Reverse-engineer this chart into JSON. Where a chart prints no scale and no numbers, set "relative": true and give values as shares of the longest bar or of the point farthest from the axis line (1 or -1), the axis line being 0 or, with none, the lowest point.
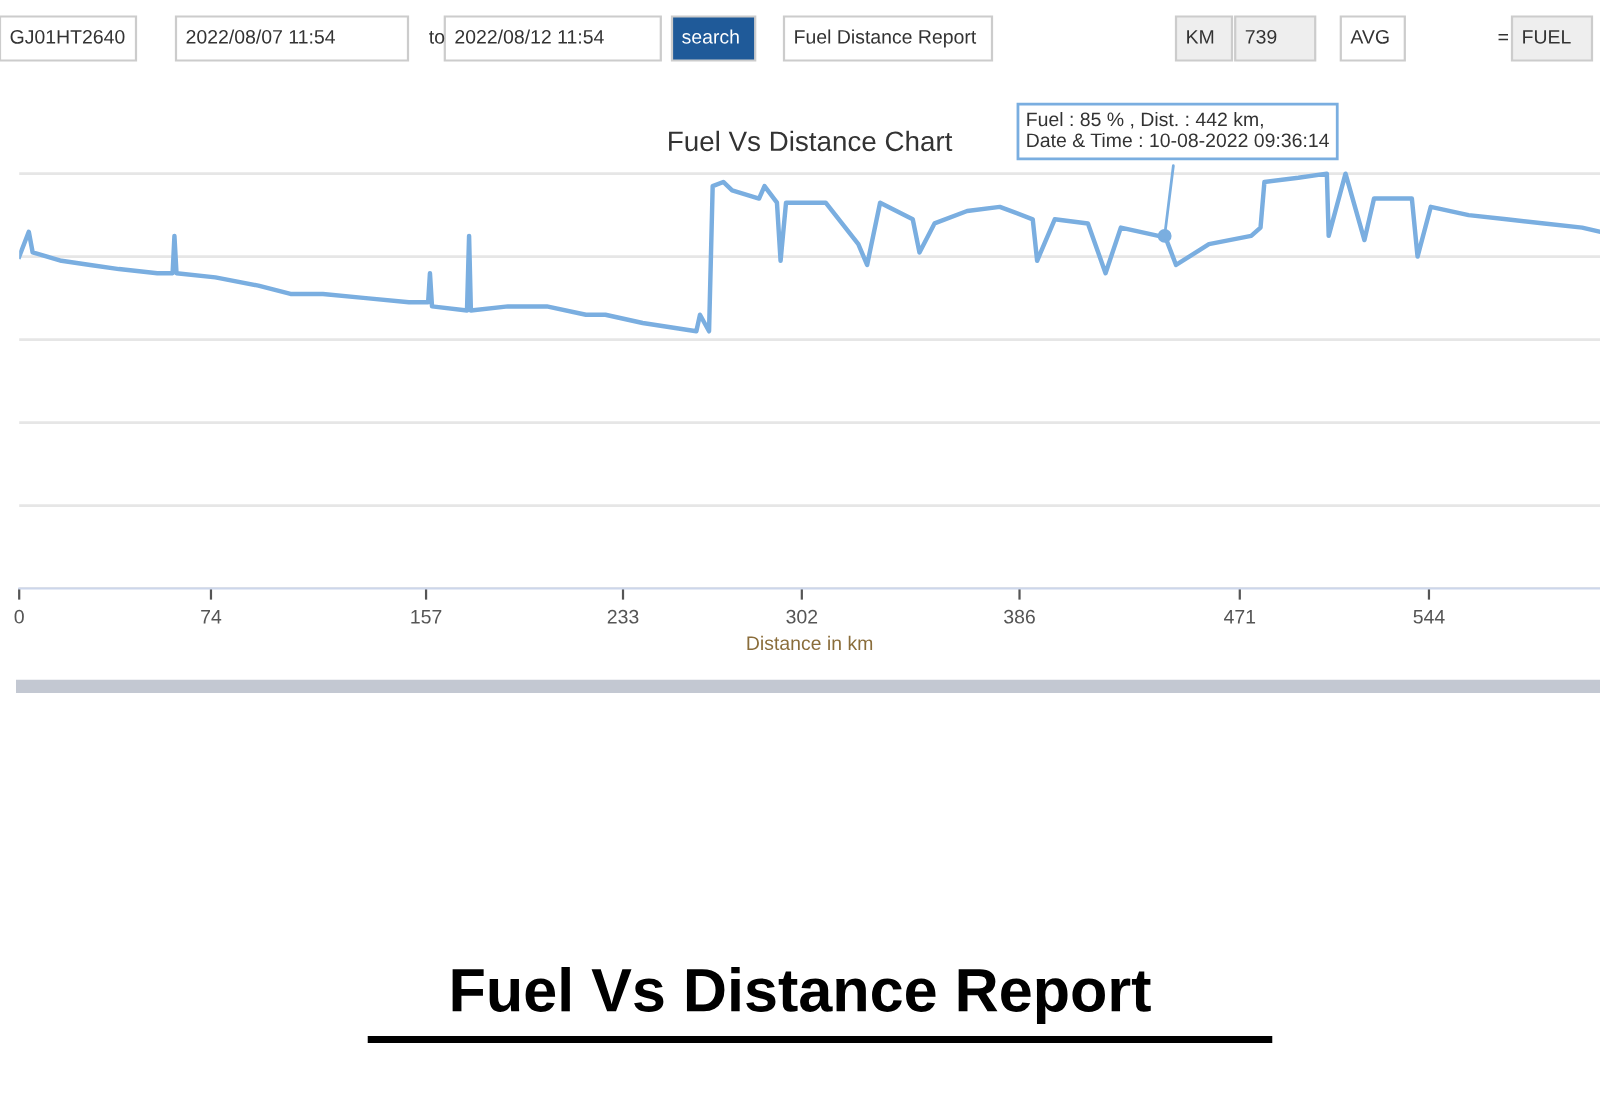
{
  "chart_data": {
    "type": "line",
    "title": "Fuel Vs Distance Chart",
    "xlabel": "Distance in km",
    "relative": true,
    "color": "#7aaee0",
    "grid": "y",
    "legend": false,
    "marker": "none",
    "line_style": "solid",
    "xlim": [
      0,
      610
    ],
    "xticks": [
      0,
      74,
      157,
      233,
      302,
      386,
      471,
      544
    ],
    "x": [
      0,
      3.7,
      5.2,
      16.3,
      27.4,
      38.5,
      53.3,
      59.2,
      59.9,
      60.7,
      75.7,
      92.3,
      104.7,
      117.2,
      133.8,
      150.4,
      157.8,
      158.5,
      159.3,
      172.8,
      173.6,
      174.3,
      188.6,
      203.6,
      218.7,
      226.2,
      240.6,
      261.3,
      262.7,
      266.2,
      267.6,
      271.7,
      275.1,
      285.5,
      287.6,
      292.4,
      293.8,
      295.9,
      311.2,
      323.8,
      327.2,
      332.2,
      344.8,
      347.4,
      353.2,
      365.8,
      378.4,
      391.1,
      392.8,
      399.6,
      412.4,
      419.2,
      425.1,
      439.6,
      442.1,
      446.4,
      459.1,
      475.4,
      479.0,
      480.5,
      493.6,
      504.6,
      505.3,
      511.8,
      519.1,
      522.8,
      537.4,
      539.6,
      544.7,
      559.3,
      573.9,
      588.5,
      603.1,
      610
    ],
    "values": [
      0.8,
      0.86,
      0.81,
      0.79,
      0.78,
      0.77,
      0.76,
      0.76,
      0.85,
      0.76,
      0.75,
      0.73,
      0.71,
      0.71,
      0.7,
      0.69,
      0.69,
      0.76,
      0.68,
      0.67,
      0.85,
      0.67,
      0.68,
      0.68,
      0.66,
      0.66,
      0.64,
      0.62,
      0.66,
      0.62,
      0.97,
      0.98,
      0.96,
      0.94,
      0.97,
      0.93,
      0.79,
      0.93,
      0.93,
      0.83,
      0.78,
      0.93,
      0.89,
      0.81,
      0.88,
      0.91,
      0.92,
      0.89,
      0.79,
      0.89,
      0.88,
      0.76,
      0.87,
      0.85,
      0.85,
      0.78,
      0.83,
      0.85,
      0.87,
      0.98,
      0.99,
      1.0,
      0.85,
      1.0,
      0.84,
      0.94,
      0.94,
      0.8,
      0.92,
      0.9,
      0.89,
      0.88,
      0.87,
      0.86
    ],
    "annotations": [
      "GJ01HT2640",
      "2022/08/07 11:54",
      "to",
      "2022/08/12 11:54",
      "search",
      "Fuel Distance Report",
      "KM",
      "739",
      "AVG",
      "=",
      "FUEL",
      {
        "text": "Fuel : 85 % , Dist. : 442 km,\nDate & Time : 10-08-2022 09:36:14",
        "x": 442,
        "y": 0.85
      },
      "Fuel Vs Distance Report"
    ]
  }
}
